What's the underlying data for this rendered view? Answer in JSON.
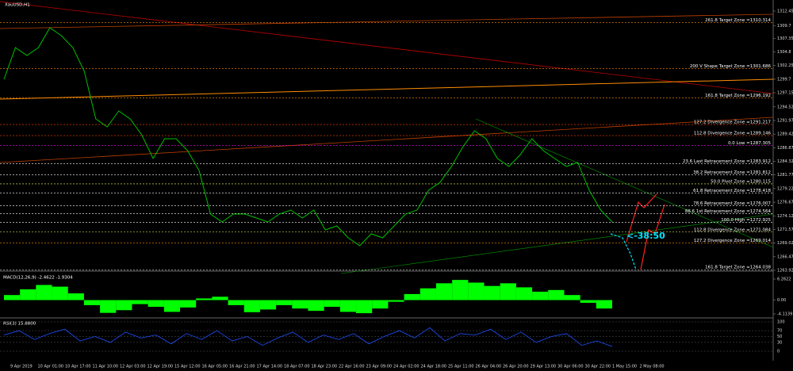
{
  "chart_data": {
    "type": "line",
    "title": "XauUSD,H1",
    "color": "#00c000",
    "values": [
      1299.69,
      1305.62,
      1304.14,
      1305.62,
      1309.33,
      1307.85,
      1305.62,
      1301.17,
      1292.27,
      1290.78,
      1293.75,
      1292.27,
      1289.3,
      1284.85,
      1288.56,
      1288.56,
      1286.33,
      1282.62,
      1274.46,
      1272.98,
      1274.46,
      1274.46,
      1273.72,
      1272.98,
      1274.46,
      1275.2,
      1273.72,
      1275.2,
      1271.49,
      1272.24,
      1270.01,
      1268.53,
      1270.75,
      1270.01,
      1272.24,
      1274.46,
      1275.2,
      1278.91,
      1280.4,
      1283.37,
      1287.07,
      1290.04,
      1288.56,
      1284.85,
      1283.37,
      1285.59,
      1288.56,
      1286.33,
      1284.85,
      1283.37,
      1284.11,
      1278.91,
      1275.2,
      1272.98
    ],
    "ylim": [
      1263.925,
      1312.45
    ],
    "yticks": [
      1312.45,
      1309.7,
      1307.35,
      1304.8,
      1302.25,
      1299.7,
      1297.15,
      1294.525,
      1291.975,
      1289.425,
      1286.875,
      1284.325,
      1281.775,
      1279.225,
      1276.675,
      1274.125,
      1271.575,
      1269.025,
      1266.475,
      1263.925
    ],
    "xticks": [
      "9 Apr 2019",
      "10 Apr 01:00",
      "10 Apr 17:00",
      "11 Apr 10:00",
      "12 Apr 03:00",
      "12 Apr 19:00",
      "15 Apr 12:00",
      "16 Apr 05:00",
      "16 Apr 21:00",
      "17 Apr 14:00",
      "18 Apr 07:00",
      "18 Apr 23:00",
      "22 Apr 16:00",
      "23 Apr 09:00",
      "24 Apr 02:00",
      "24 Apr 18:00",
      "25 Apr 11:00",
      "26 Apr 04:00",
      "26 Apr 20:00",
      "29 Apr 13:00",
      "30 Apr 06:00",
      "30 Apr 22:00",
      "1 May 15:00",
      "2 May 08:00"
    ],
    "levels": [
      {
        "value": 1310.314,
        "label": "261.8 Target Zone =1310.314",
        "color": "#ff8c00"
      },
      {
        "value": 1301.686,
        "label": "200  V Shape Target Zone =1301.686",
        "color": "#ff8c00"
      },
      {
        "value": 1296.192,
        "label": "161.8 Target Zone =1296.192",
        "color": "#ff8c00"
      },
      {
        "value": 1291.217,
        "label": "127.2 Divergence Zone =1291.217",
        "color": "#ff4500"
      },
      {
        "value": 1289.146,
        "label": "112.8 Divergence Zone =1289.146",
        "color": "#ff4500"
      },
      {
        "value": 1287.305,
        "label": "0.0 Low =1287.305",
        "color": "#ff00ff"
      },
      {
        "value": 1283.912,
        "label": "23.6 Last Retracement Zone =1283.912",
        "color": "#ffffff"
      },
      {
        "value": 1281.812,
        "label": "38.2 Retracement Zone =1281.812",
        "color": "#ffffff"
      },
      {
        "value": 1280.115,
        "label": "50.0 Pivot Zone =1280.115",
        "color": "#ffff66"
      },
      {
        "value": 1278.418,
        "label": "61.8 Retracement Zone =1278.418",
        "color": "#ffffff"
      },
      {
        "value": 1276.007,
        "label": "78.6 Retracement Zone =1276.007",
        "color": "#ffffff"
      },
      {
        "value": 1274.564,
        "label": "88.6 1st Retracement Zone =1274.564",
        "color": "#ffffff"
      },
      {
        "value": 1272.925,
        "label": "100.0 High =1272.925",
        "color": "#ffffff"
      },
      {
        "value": 1271.084,
        "label": "112.8 Divergence Zone =1271.084",
        "color": "#ffff66"
      },
      {
        "value": 1269.014,
        "label": "127.2 Divergence Zone =1269.014",
        "color": "#ff8c00"
      },
      {
        "value": 1264.038,
        "label": "161.8 Target Zone =1264.038",
        "color": "#ffffff"
      }
    ],
    "annotation": "<-38:50",
    "macd": {
      "label": "MACD(12,26,9) -2.4622 -1.9304",
      "color": "#00ff00",
      "values": [
        1.5,
        3.2,
        4.5,
        4.0,
        2.0,
        -1.5,
        -3.8,
        -3.0,
        -1.2,
        -2.0,
        -3.5,
        -2.2,
        0.5,
        1.0,
        -1.5,
        -3.6,
        -2.8,
        -1.5,
        -2.5,
        -3.2,
        -2.0,
        -3.5,
        -3.9,
        -2.5,
        -0.5,
        1.8,
        3.5,
        5.0,
        6.0,
        5.2,
        4.2,
        5.0,
        3.8,
        2.5,
        3.0,
        1.5,
        -0.8,
        -2.5
      ],
      "ylim": [
        -4.1139,
        6.2622
      ],
      "yticks": [
        6.2622,
        {
          "value": 0,
          "label": "0.00"
        },
        -4.1139
      ]
    },
    "rsi": {
      "label": "RSI(3) 15.8800",
      "color": "#1e50ff",
      "values": [
        55,
        70,
        40,
        60,
        75,
        35,
        50,
        30,
        65,
        45,
        55,
        25,
        60,
        40,
        70,
        35,
        50,
        20,
        45,
        65,
        30,
        55,
        40,
        60,
        25,
        50,
        70,
        45,
        80,
        35,
        60,
        55,
        75,
        40,
        65,
        30,
        50,
        60,
        20,
        35,
        15.88
      ],
      "ylim": [
        0,
        100
      ],
      "yticks": [
        100,
        70,
        50,
        30,
        0
      ]
    }
  }
}
